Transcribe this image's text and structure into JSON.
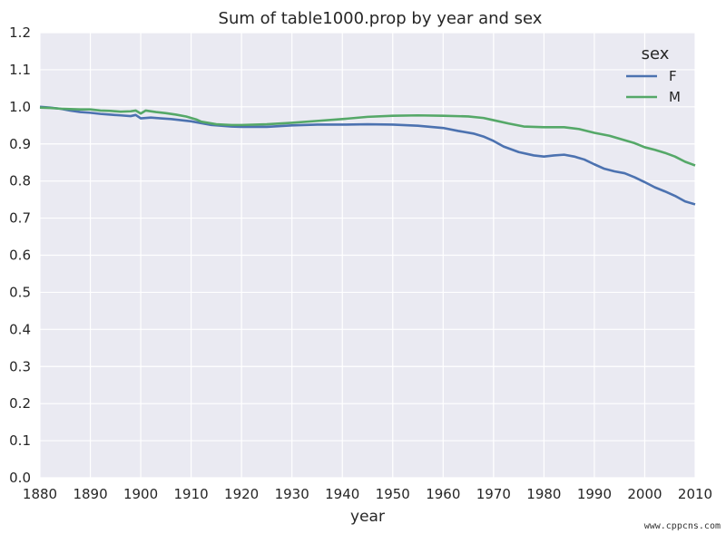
{
  "chart_data": {
    "type": "line",
    "title": "Sum of table1000.prop by year and sex",
    "xlabel": "year",
    "ylabel": "",
    "xlim": [
      1880,
      2010
    ],
    "ylim": [
      0.0,
      1.2
    ],
    "x_ticks": [
      "1880",
      "1890",
      "1900",
      "1910",
      "1920",
      "1930",
      "1940",
      "1950",
      "1960",
      "1970",
      "1980",
      "1990",
      "2000",
      "2010"
    ],
    "y_ticks": [
      "0.0",
      "0.1",
      "0.2",
      "0.3",
      "0.4",
      "0.5",
      "0.6",
      "0.7",
      "0.8",
      "0.9",
      "1.0",
      "1.1",
      "1.2"
    ],
    "grid": true,
    "legend": {
      "title": "sex",
      "placement": "top-right"
    },
    "series": [
      {
        "name": "F",
        "color": "#4c72b0",
        "points": [
          [
            1880,
            1.0
          ],
          [
            1882,
            0.998
          ],
          [
            1884,
            0.995
          ],
          [
            1886,
            0.99
          ],
          [
            1888,
            0.986
          ],
          [
            1890,
            0.984
          ],
          [
            1892,
            0.981
          ],
          [
            1894,
            0.979
          ],
          [
            1896,
            0.977
          ],
          [
            1898,
            0.975
          ],
          [
            1899,
            0.978
          ],
          [
            1900,
            0.969
          ],
          [
            1902,
            0.971
          ],
          [
            1904,
            0.969
          ],
          [
            1906,
            0.967
          ],
          [
            1908,
            0.964
          ],
          [
            1910,
            0.961
          ],
          [
            1912,
            0.956
          ],
          [
            1914,
            0.951
          ],
          [
            1916,
            0.949
          ],
          [
            1918,
            0.947
          ],
          [
            1920,
            0.946
          ],
          [
            1925,
            0.946
          ],
          [
            1930,
            0.95
          ],
          [
            1935,
            0.952
          ],
          [
            1940,
            0.952
          ],
          [
            1945,
            0.953
          ],
          [
            1950,
            0.952
          ],
          [
            1955,
            0.949
          ],
          [
            1960,
            0.943
          ],
          [
            1963,
            0.935
          ],
          [
            1966,
            0.928
          ],
          [
            1968,
            0.92
          ],
          [
            1970,
            0.908
          ],
          [
            1972,
            0.893
          ],
          [
            1975,
            0.878
          ],
          [
            1978,
            0.869
          ],
          [
            1980,
            0.866
          ],
          [
            1982,
            0.869
          ],
          [
            1984,
            0.871
          ],
          [
            1986,
            0.866
          ],
          [
            1988,
            0.858
          ],
          [
            1990,
            0.845
          ],
          [
            1992,
            0.833
          ],
          [
            1994,
            0.826
          ],
          [
            1996,
            0.821
          ],
          [
            1998,
            0.81
          ],
          [
            2000,
            0.797
          ],
          [
            2002,
            0.783
          ],
          [
            2004,
            0.772
          ],
          [
            2006,
            0.76
          ],
          [
            2008,
            0.745
          ],
          [
            2010,
            0.737
          ]
        ]
      },
      {
        "name": "M",
        "color": "#55a868",
        "points": [
          [
            1880,
            0.998
          ],
          [
            1882,
            0.997
          ],
          [
            1884,
            0.995
          ],
          [
            1886,
            0.994
          ],
          [
            1888,
            0.993
          ],
          [
            1890,
            0.993
          ],
          [
            1892,
            0.99
          ],
          [
            1894,
            0.989
          ],
          [
            1896,
            0.987
          ],
          [
            1898,
            0.988
          ],
          [
            1899,
            0.99
          ],
          [
            1900,
            0.982
          ],
          [
            1901,
            0.99
          ],
          [
            1903,
            0.986
          ],
          [
            1905,
            0.983
          ],
          [
            1907,
            0.979
          ],
          [
            1909,
            0.974
          ],
          [
            1911,
            0.966
          ],
          [
            1912,
            0.96
          ],
          [
            1915,
            0.953
          ],
          [
            1918,
            0.951
          ],
          [
            1920,
            0.951
          ],
          [
            1925,
            0.953
          ],
          [
            1930,
            0.957
          ],
          [
            1935,
            0.962
          ],
          [
            1940,
            0.967
          ],
          [
            1945,
            0.973
          ],
          [
            1950,
            0.976
          ],
          [
            1955,
            0.977
          ],
          [
            1960,
            0.976
          ],
          [
            1965,
            0.974
          ],
          [
            1968,
            0.97
          ],
          [
            1970,
            0.964
          ],
          [
            1973,
            0.955
          ],
          [
            1976,
            0.947
          ],
          [
            1980,
            0.945
          ],
          [
            1984,
            0.945
          ],
          [
            1987,
            0.94
          ],
          [
            1990,
            0.93
          ],
          [
            1993,
            0.922
          ],
          [
            1996,
            0.91
          ],
          [
            1998,
            0.902
          ],
          [
            2000,
            0.891
          ],
          [
            2002,
            0.884
          ],
          [
            2004,
            0.876
          ],
          [
            2006,
            0.866
          ],
          [
            2008,
            0.852
          ],
          [
            2010,
            0.842
          ]
        ]
      }
    ]
  },
  "watermark": "www.cppcns.com"
}
